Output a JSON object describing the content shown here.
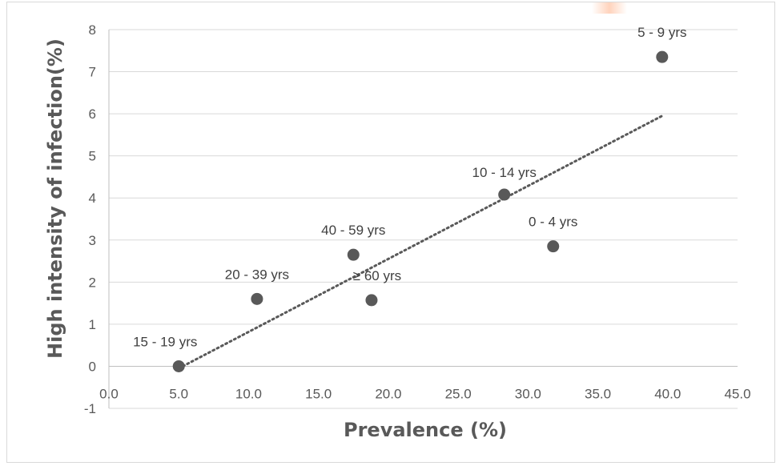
{
  "chart_data": {
    "type": "scatter",
    "xlabel": "Prevalence (%)",
    "ylabel": "High intensity of infection(%)",
    "xlim": [
      0,
      45
    ],
    "ylim": [
      -1,
      8
    ],
    "x_ticks": [
      0,
      5,
      10,
      15,
      20,
      25,
      30,
      35,
      40,
      45
    ],
    "x_tick_labels": [
      "0.0",
      "5.0",
      "10.0",
      "15.0",
      "20.0",
      "25.0",
      "30.0",
      "35.0",
      "40.0",
      "45.0"
    ],
    "y_ticks": [
      -1,
      0,
      1,
      2,
      3,
      4,
      5,
      6,
      7,
      8
    ],
    "y_tick_labels": [
      "-1",
      "0",
      "1",
      "2",
      "3",
      "4",
      "5",
      "6",
      "7",
      "8"
    ],
    "grid": "horizontal",
    "series": [
      {
        "points": [
          {
            "label": "0 - 4 yrs",
            "x": 31.8,
            "y": 2.85
          },
          {
            "label": "5 - 9 yrs",
            "x": 39.6,
            "y": 7.35
          },
          {
            "label": "10 - 14 yrs",
            "x": 28.3,
            "y": 4.08
          },
          {
            "label": "15 - 19 yrs",
            "x": 5.0,
            "y": 0.0
          },
          {
            "label": "20 - 39 yrs",
            "x": 10.6,
            "y": 1.6
          },
          {
            "label": "40 - 59 yrs",
            "x": 17.5,
            "y": 2.65
          },
          {
            "label": "≥ 60 yrs",
            "x": 18.8,
            "y": 1.57
          }
        ]
      }
    ],
    "trendline": {
      "type": "linear",
      "style": "dotted",
      "from": {
        "x": 5.0,
        "y": -0.05
      },
      "to": {
        "x": 39.6,
        "y": 5.95
      }
    },
    "colors": {
      "marker": "#595959",
      "trendline": "#595959",
      "grid": "#d9d9d9",
      "text": "#595959"
    }
  }
}
